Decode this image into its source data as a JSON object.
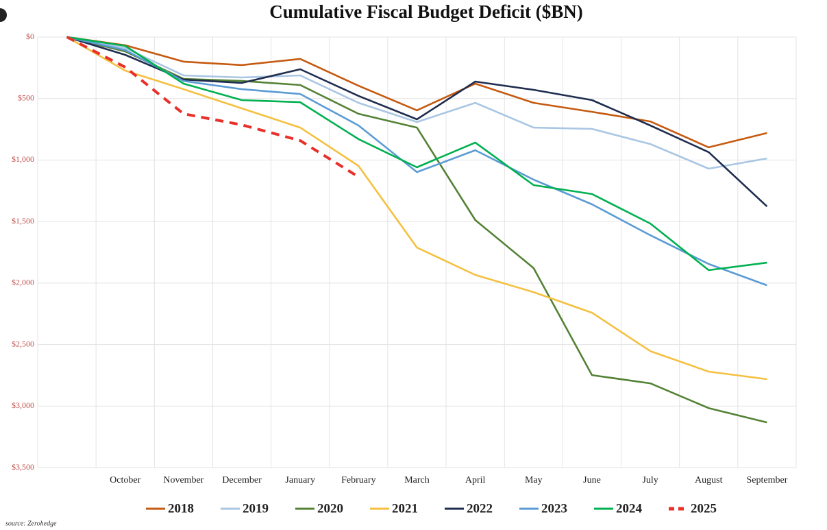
{
  "chart_data": {
    "type": "line",
    "title": "Cumulative Fiscal Budget Deficit ($BN)",
    "source": "source: Zerohedge",
    "categories": [
      null,
      "October",
      "November",
      "December",
      "January",
      "February",
      "March",
      "April",
      "May",
      "June",
      "July",
      "August",
      "September"
    ],
    "ylim": [
      0,
      3500
    ],
    "invert_y": true,
    "grid": true,
    "legend": "bottom",
    "yticks": [
      {
        "value": 0,
        "label": "$0"
      },
      {
        "value": 500,
        "label": "$500"
      },
      {
        "value": 1000,
        "label": "$1,000"
      },
      {
        "value": 1500,
        "label": "$1,500"
      },
      {
        "value": 2000,
        "label": "$2,000"
      },
      {
        "value": 2500,
        "label": "$2,500"
      },
      {
        "value": 3000,
        "label": "$3,000"
      },
      {
        "value": 3500,
        "label": "$3,500"
      }
    ],
    "series": [
      {
        "name": "2018",
        "color": "#c55a11",
        "values": [
          0,
          67,
          200,
          228,
          178,
          396,
          596,
          379,
          535,
          608,
          686,
          897,
          780
        ]
      },
      {
        "name": "2019",
        "color": "#a9c6e3",
        "values": [
          0,
          89,
          312,
          329,
          312,
          535,
          691,
          535,
          736,
          747,
          870,
          1070,
          987
        ]
      },
      {
        "name": "2020",
        "color": "#548235",
        "values": [
          0,
          117,
          340,
          357,
          390,
          624,
          736,
          1488,
          1878,
          2748,
          2815,
          3016,
          3133
        ]
      },
      {
        "name": "2021",
        "color": "#f4c040",
        "values": [
          0,
          273,
          424,
          580,
          736,
          1048,
          1711,
          1934,
          2074,
          2241,
          2553,
          2720,
          2781
        ]
      },
      {
        "name": "2022",
        "color": "#1f2d4f",
        "values": [
          0,
          145,
          346,
          373,
          262,
          479,
          669,
          362,
          429,
          513,
          719,
          936,
          1377
        ]
      },
      {
        "name": "2023",
        "color": "#5b9bd5",
        "values": [
          0,
          106,
          357,
          424,
          463,
          719,
          1098,
          920,
          1159,
          1360,
          1611,
          1845,
          2018
        ]
      },
      {
        "name": "2024",
        "color": "#00b050",
        "values": [
          0,
          72,
          379,
          513,
          530,
          830,
          1059,
          858,
          1204,
          1276,
          1516,
          1895,
          1834
        ]
      },
      {
        "name": "2025",
        "color": "#e8302a",
        "dashed": true,
        "values": [
          0,
          245,
          624,
          714,
          842,
          1137,
          null,
          null,
          null,
          null,
          null,
          null,
          null
        ]
      }
    ]
  }
}
